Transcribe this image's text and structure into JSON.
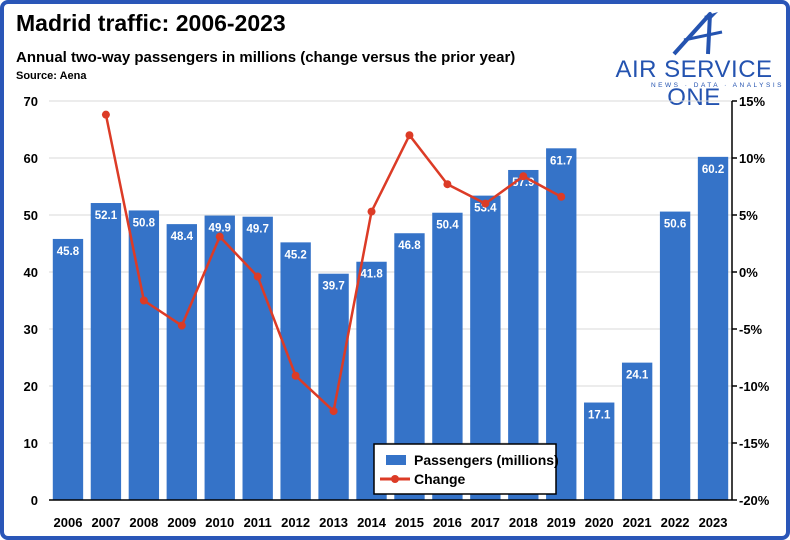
{
  "header": {
    "title": "Madrid traffic: 2006-2023",
    "subtitle": "Annual two-way passengers in millions (change versus the prior year)",
    "source": "Source: Aena"
  },
  "logo": {
    "name": "AIR SERVICE ONE",
    "tagline": "NEWS · DATA · ANALYSIS",
    "icon": "airplane-a-icon"
  },
  "colors": {
    "bar": "#3573c8",
    "line": "#dc3b26",
    "frame": "#2a56b8",
    "grid": "#d9d9d9"
  },
  "chart_data": {
    "type": "bar",
    "categories": [
      "2006",
      "2007",
      "2008",
      "2009",
      "2010",
      "2011",
      "2012",
      "2013",
      "2014",
      "2015",
      "2016",
      "2017",
      "2018",
      "2019",
      "2020",
      "2021",
      "2022",
      "2023"
    ],
    "series": [
      {
        "name": "Passengers (millions)",
        "type": "bar",
        "axis": "left",
        "values": [
          45.8,
          52.1,
          50.8,
          48.4,
          49.9,
          49.7,
          45.2,
          39.7,
          41.8,
          46.8,
          50.4,
          53.4,
          57.9,
          61.7,
          17.1,
          24.1,
          50.6,
          60.2
        ],
        "labels": [
          "45.8",
          "52.1",
          "50.8",
          "48.4",
          "49.9",
          "49.7",
          "45.2",
          "39.7",
          "41.8",
          "46.8",
          "50.4",
          "53.4",
          "57.9",
          "61.7",
          "17.1",
          "24.1",
          "50.6",
          "60.2"
        ]
      },
      {
        "name": "Change",
        "type": "line",
        "axis": "right",
        "values": [
          null,
          13.8,
          -2.5,
          -4.7,
          3.1,
          -0.4,
          -9.1,
          -12.2,
          5.3,
          12.0,
          7.7,
          6.0,
          8.4,
          6.6,
          null,
          null,
          null,
          null
        ]
      }
    ],
    "y_left": {
      "min": 0,
      "max": 70,
      "ticks": [
        0,
        10,
        20,
        30,
        40,
        50,
        60,
        70
      ],
      "tick_labels": [
        "0",
        "10",
        "20",
        "30",
        "40",
        "50",
        "60",
        "70"
      ]
    },
    "y_right": {
      "min": -20,
      "max": 15,
      "ticks": [
        -20,
        -15,
        -10,
        -5,
        0,
        5,
        10,
        15
      ],
      "tick_labels": [
        "-20%",
        "-15%",
        "-10%",
        "-5%",
        "0%",
        "5%",
        "10%",
        "15%"
      ]
    },
    "grid": true,
    "legend_position": "bottom-center"
  }
}
